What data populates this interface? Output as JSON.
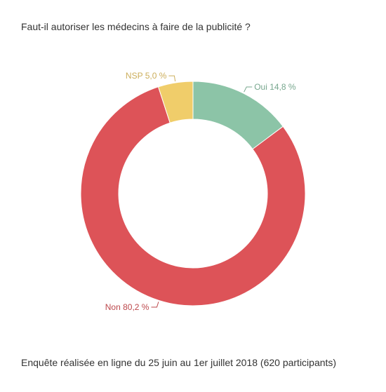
{
  "chart_data": {
    "type": "pie",
    "variant": "donut",
    "title": "Faut-il autoriser les médecins à faire de la publicité ?",
    "footnote": "Enquête réalisée en ligne du 25 juin au 1er juillet 2018  (620 participants)",
    "slices": [
      {
        "label": "Oui",
        "value": 14.8,
        "display": "Oui 14,8 %",
        "color": "#8cc4a7"
      },
      {
        "label": "Non",
        "value": 80.2,
        "display": "Non 80,2 %",
        "color": "#dd5358"
      },
      {
        "label": "NSP",
        "value": 5.0,
        "display": "NSP 5,0 %",
        "color": "#f0cd6a"
      }
    ],
    "start_angle_deg": 0,
    "direction": "clockwise",
    "legend": "none"
  }
}
